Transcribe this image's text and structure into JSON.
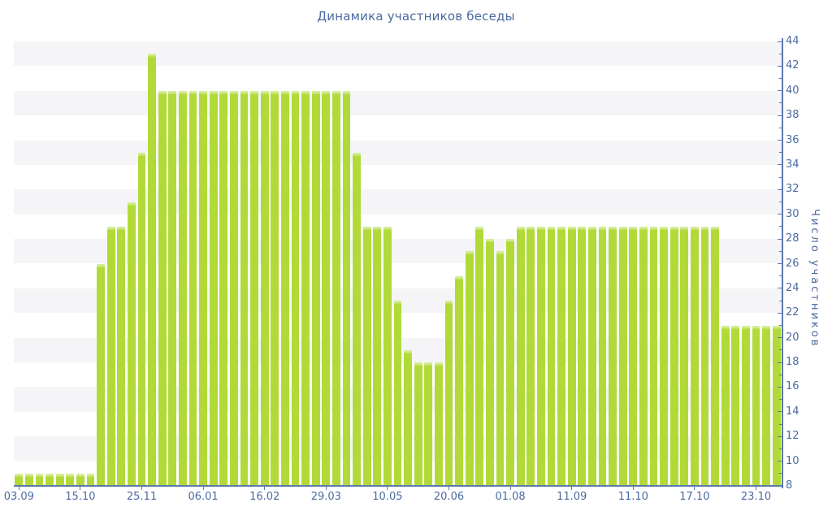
{
  "chart_data": {
    "type": "bar",
    "title": "Динамика участников беседы",
    "ylabel": "Число участников",
    "xlabel": "",
    "ylim": [
      8,
      44
    ],
    "y_tick_step": 2,
    "y_minor_tick_step": 1,
    "y_tick_labels": [
      44,
      42,
      40,
      38,
      36,
      34,
      32,
      30,
      28,
      26,
      24,
      22,
      20,
      18,
      16,
      14,
      12,
      10,
      8
    ],
    "x_tick_labels": [
      "03.09",
      "15.10",
      "25.11",
      "06.01",
      "16.02",
      "29.03",
      "10.05",
      "20.06",
      "01.08",
      "11.09",
      "11.10",
      "17.10",
      "23.10"
    ],
    "x_tick_bar_indices": [
      0,
      6,
      12,
      18,
      24,
      30,
      36,
      42,
      48,
      54,
      60,
      66,
      72
    ],
    "n_bars": 75,
    "values": [
      9,
      9,
      9,
      9,
      9,
      9,
      9,
      9,
      26,
      29,
      29,
      31,
      35,
      43,
      40,
      40,
      40,
      40,
      40,
      40,
      40,
      40,
      40,
      40,
      40,
      40,
      40,
      40,
      40,
      40,
      40,
      40,
      40,
      35,
      29,
      29,
      29,
      23,
      19,
      18,
      18,
      18,
      23,
      25,
      27,
      29,
      28,
      27,
      28,
      29,
      29,
      29,
      29,
      29,
      29,
      29,
      29,
      29,
      29,
      29,
      29,
      29,
      29,
      29,
      29,
      29,
      29,
      29,
      29,
      21,
      21,
      21,
      21,
      21,
      21
    ],
    "legend": "none",
    "grid": "horizontal-zebra-stripes",
    "colors": {
      "bar": "#b1da38",
      "bar_cap": "#d3ec95",
      "text": "#4b6aa0",
      "axis": "#5a79ad",
      "stripe": "#f5f5f7",
      "background": "#ffffff"
    }
  }
}
